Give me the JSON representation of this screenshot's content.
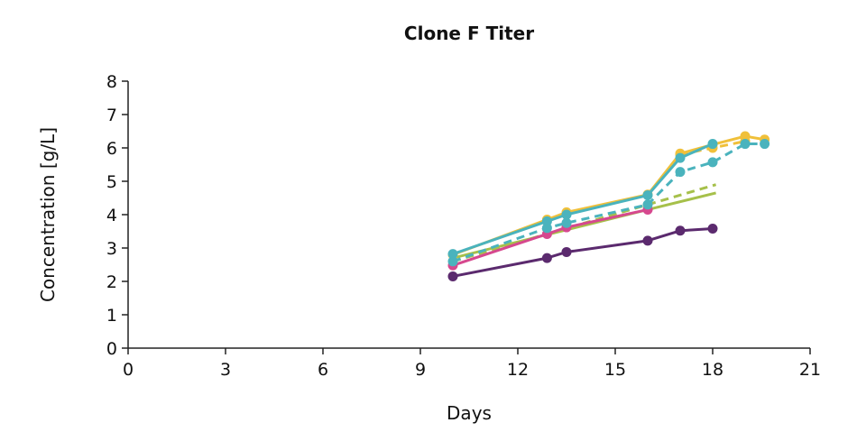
{
  "chart_data": {
    "type": "line",
    "title": "Clone F Titer",
    "xlabel": "Days",
    "ylabel": "Concentration [g/L]",
    "xlim": [
      0,
      21
    ],
    "ylim": [
      0,
      8
    ],
    "xticks": [
      0,
      3,
      6,
      9,
      12,
      15,
      18,
      21
    ],
    "yticks": [
      0,
      1,
      2,
      3,
      4,
      5,
      6,
      7,
      8
    ],
    "grid": false,
    "series": [
      {
        "color": "#a6c04a",
        "dash": true,
        "markers": false,
        "x": [
          10,
          16,
          18.1
        ],
        "y": [
          2.6,
          4.3,
          4.9
        ]
      },
      {
        "color": "#a6c04a",
        "dash": false,
        "markers": false,
        "x": [
          10,
          16,
          18.1
        ],
        "y": [
          2.7,
          4.15,
          4.65
        ]
      },
      {
        "color": "#d6488e",
        "dash": false,
        "markers": true,
        "x": [
          10,
          12.9,
          13.5,
          16
        ],
        "y": [
          2.48,
          3.42,
          3.62,
          4.15
        ]
      },
      {
        "color": "#5b2a6e",
        "dash": false,
        "markers": true,
        "x": [
          10,
          12.9,
          13.5,
          16,
          17,
          18
        ],
        "y": [
          2.15,
          2.7,
          2.88,
          3.22,
          3.52,
          3.58
        ]
      },
      {
        "color": "#f0c03a",
        "dash": true,
        "markers": true,
        "x": [
          17,
          18,
          19
        ],
        "y": [
          5.8,
          6.0,
          6.2
        ]
      },
      {
        "color": "#f0c03a",
        "dash": false,
        "markers": true,
        "x": [
          10,
          12.9,
          13.5,
          16,
          17,
          18,
          19,
          19.6
        ],
        "y": [
          2.8,
          3.85,
          4.07,
          4.6,
          5.83,
          6.1,
          6.35,
          6.25
        ]
      },
      {
        "color": "#4ab3bd",
        "dash": true,
        "markers": true,
        "x": [
          10,
          12.9,
          13.5,
          16,
          17,
          18,
          19,
          19.6
        ],
        "y": [
          2.6,
          3.6,
          3.75,
          4.3,
          5.28,
          5.57,
          6.12,
          6.12
        ]
      },
      {
        "color": "#4ab3bd",
        "dash": false,
        "markers": true,
        "x": [
          10,
          12.9,
          13.5,
          16,
          17,
          18
        ],
        "y": [
          2.82,
          3.8,
          4.0,
          4.58,
          5.7,
          6.12
        ]
      }
    ]
  }
}
